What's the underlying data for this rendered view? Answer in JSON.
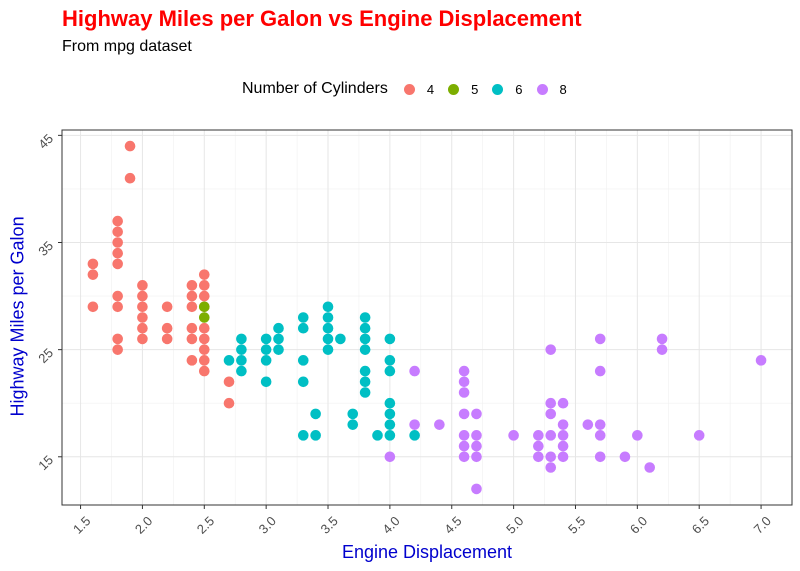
{
  "chart_data": {
    "type": "scatter",
    "title": "Highway Miles per Galon vs Engine Displacement",
    "subtitle": "From mpg dataset",
    "xlabel": "Engine Displacement",
    "ylabel": "Highway Miles per Galon",
    "xlim": [
      1.35,
      7.25
    ],
    "ylim": [
      10.5,
      45.5
    ],
    "x_ticks": [
      "1.5",
      "2.0",
      "2.5",
      "3.0",
      "3.5",
      "4.0",
      "4.5",
      "5.0",
      "5.5",
      "6.0",
      "6.5",
      "7.0"
    ],
    "y_ticks": [
      "15",
      "25",
      "35",
      "45"
    ],
    "grid": true,
    "legend_position": "top",
    "legend": {
      "title": "Number of Cylinders",
      "entries": [
        {
          "label": "4",
          "color": "#F8766D"
        },
        {
          "label": "5",
          "color": "#7CAE00"
        },
        {
          "label": "6",
          "color": "#00BFC4"
        },
        {
          "label": "8",
          "color": "#C77CFF"
        }
      ]
    },
    "series": [
      {
        "name": "4",
        "color": "#F8766D",
        "points": [
          [
            1.6,
            33
          ],
          [
            1.6,
            32
          ],
          [
            1.6,
            29
          ],
          [
            1.8,
            37
          ],
          [
            1.8,
            36
          ],
          [
            1.8,
            35
          ],
          [
            1.8,
            34
          ],
          [
            1.8,
            33
          ],
          [
            1.8,
            30
          ],
          [
            1.8,
            29
          ],
          [
            1.8,
            26
          ],
          [
            1.8,
            25
          ],
          [
            1.9,
            44
          ],
          [
            1.9,
            41
          ],
          [
            2.0,
            31
          ],
          [
            2.0,
            30
          ],
          [
            2.0,
            29
          ],
          [
            2.0,
            28
          ],
          [
            2.0,
            27
          ],
          [
            2.0,
            26
          ],
          [
            2.2,
            29
          ],
          [
            2.2,
            27
          ],
          [
            2.2,
            26
          ],
          [
            2.4,
            31
          ],
          [
            2.4,
            30
          ],
          [
            2.4,
            29
          ],
          [
            2.4,
            27
          ],
          [
            2.4,
            26
          ],
          [
            2.4,
            24
          ],
          [
            2.5,
            32
          ],
          [
            2.5,
            31
          ],
          [
            2.5,
            30
          ],
          [
            2.5,
            29
          ],
          [
            2.5,
            27
          ],
          [
            2.5,
            26
          ],
          [
            2.5,
            25
          ],
          [
            2.5,
            24
          ],
          [
            2.5,
            23
          ],
          [
            2.7,
            22
          ],
          [
            2.7,
            20
          ]
        ]
      },
      {
        "name": "5",
        "color": "#7CAE00",
        "points": [
          [
            2.5,
            29
          ],
          [
            2.5,
            28
          ]
        ]
      },
      {
        "name": "6",
        "color": "#00BFC4",
        "points": [
          [
            2.7,
            24
          ],
          [
            2.8,
            26
          ],
          [
            2.8,
            25
          ],
          [
            2.8,
            24
          ],
          [
            2.8,
            23
          ],
          [
            3.0,
            26
          ],
          [
            3.0,
            25
          ],
          [
            3.0,
            24
          ],
          [
            3.0,
            22
          ],
          [
            3.1,
            27
          ],
          [
            3.1,
            26
          ],
          [
            3.1,
            25
          ],
          [
            3.3,
            28
          ],
          [
            3.3,
            27
          ],
          [
            3.3,
            24
          ],
          [
            3.3,
            22
          ],
          [
            3.3,
            17
          ],
          [
            3.4,
            19
          ],
          [
            3.4,
            17
          ],
          [
            3.5,
            29
          ],
          [
            3.5,
            28
          ],
          [
            3.5,
            27
          ],
          [
            3.5,
            26
          ],
          [
            3.5,
            25
          ],
          [
            3.6,
            26
          ],
          [
            3.7,
            19
          ],
          [
            3.7,
            18
          ],
          [
            3.8,
            28
          ],
          [
            3.8,
            27
          ],
          [
            3.8,
            26
          ],
          [
            3.8,
            25
          ],
          [
            3.8,
            23
          ],
          [
            3.8,
            22
          ],
          [
            3.8,
            21
          ],
          [
            3.9,
            17
          ],
          [
            4.0,
            26
          ],
          [
            4.0,
            24
          ],
          [
            4.0,
            23
          ],
          [
            4.0,
            20
          ],
          [
            4.0,
            19
          ],
          [
            4.0,
            18
          ],
          [
            4.0,
            17
          ],
          [
            4.2,
            17
          ]
        ]
      },
      {
        "name": "8",
        "color": "#C77CFF",
        "points": [
          [
            4.0,
            15
          ],
          [
            4.2,
            23
          ],
          [
            4.2,
            18
          ],
          [
            4.4,
            18
          ],
          [
            4.6,
            23
          ],
          [
            4.6,
            22
          ],
          [
            4.6,
            21
          ],
          [
            4.6,
            19
          ],
          [
            4.6,
            17
          ],
          [
            4.6,
            16
          ],
          [
            4.6,
            15
          ],
          [
            4.7,
            19
          ],
          [
            4.7,
            17
          ],
          [
            4.7,
            16
          ],
          [
            4.7,
            15
          ],
          [
            4.7,
            12
          ],
          [
            5.0,
            17
          ],
          [
            5.2,
            17
          ],
          [
            5.2,
            16
          ],
          [
            5.2,
            15
          ],
          [
            5.3,
            25
          ],
          [
            5.3,
            20
          ],
          [
            5.3,
            19
          ],
          [
            5.3,
            17
          ],
          [
            5.3,
            15
          ],
          [
            5.3,
            14
          ],
          [
            5.4,
            20
          ],
          [
            5.4,
            18
          ],
          [
            5.4,
            17
          ],
          [
            5.4,
            16
          ],
          [
            5.4,
            15
          ],
          [
            5.6,
            18
          ],
          [
            5.7,
            26
          ],
          [
            5.7,
            23
          ],
          [
            5.7,
            18
          ],
          [
            5.7,
            17
          ],
          [
            5.7,
            15
          ],
          [
            5.9,
            15
          ],
          [
            6.0,
            17
          ],
          [
            6.1,
            14
          ],
          [
            6.2,
            26
          ],
          [
            6.2,
            25
          ],
          [
            6.5,
            17
          ],
          [
            7.0,
            24
          ]
        ]
      }
    ]
  }
}
